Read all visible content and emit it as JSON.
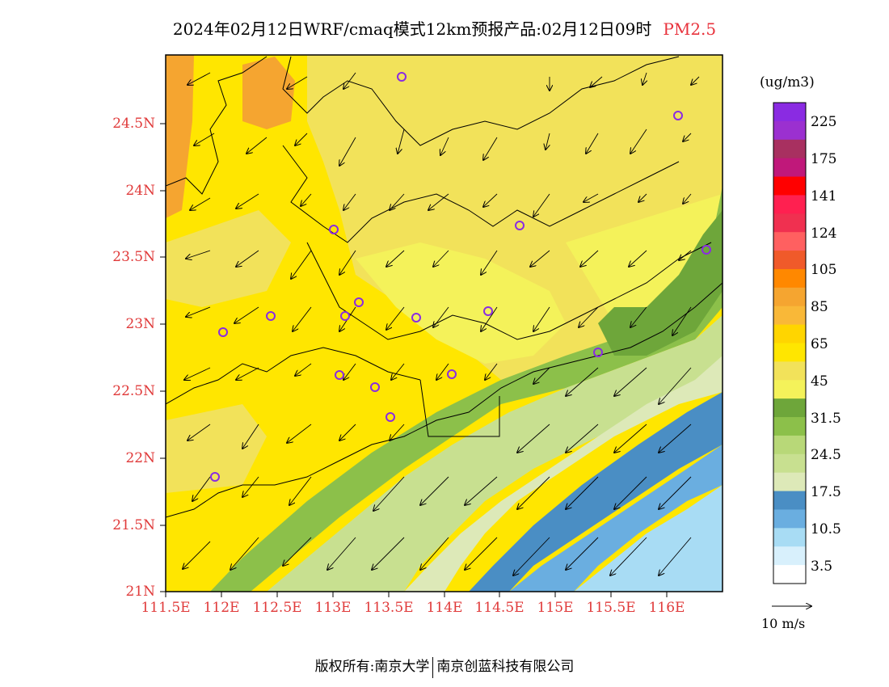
{
  "header": {
    "title": "2024年02月12日WRF/cmaq模式12km预报产品:02月12日09时",
    "pollutant": "PM2.5"
  },
  "axes": {
    "lat_labels": [
      "24.5N",
      "24N",
      "23.5N",
      "23N",
      "22.5N",
      "22N",
      "21.5N",
      "21N"
    ],
    "lon_labels": [
      "111.5E",
      "112E",
      "112.5E",
      "113E",
      "113.5E",
      "114E",
      "114.5E",
      "115E",
      "115.5E",
      "116E"
    ]
  },
  "legend": {
    "unit": "(ug/m3)",
    "labels": [
      "225",
      "175",
      "141",
      "124",
      "105",
      "85",
      "65",
      "45",
      "31.5",
      "24.5",
      "17.5",
      "10.5",
      "3.5"
    ],
    "colors": [
      "#8a2be2",
      "#9b30d0",
      "#a83060",
      "#c0187a",
      "#ff0000",
      "#ff2050",
      "#f03050",
      "#ff6060",
      "#f05a2a",
      "#ff8800",
      "#f5a530",
      "#f9b838",
      "#ffd500",
      "#ffe600",
      "#f2e25a",
      "#f4f25a",
      "#6ea63a",
      "#8cc04a",
      "#b8d878",
      "#c8e090",
      "#dde9b8",
      "#4a8ec4",
      "#6aaee0",
      "#a8dcf4",
      "#d8f0fc",
      "#ffffff"
    ]
  },
  "vector_ref": {
    "label": "10 m/s"
  },
  "footer": {
    "left": "版权所有:南京大学",
    "right": "南京创蓝科技有限公司"
  }
}
